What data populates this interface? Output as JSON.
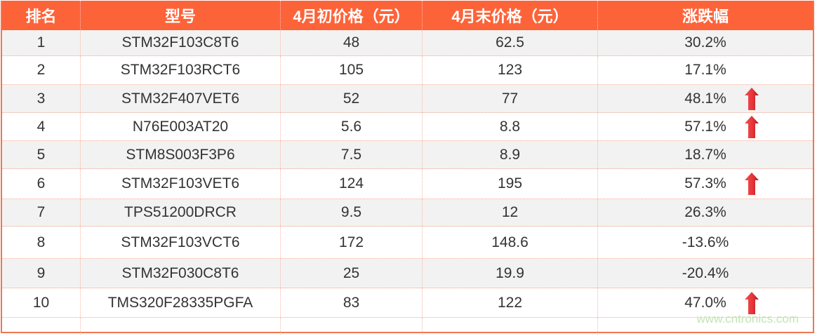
{
  "headers": [
    "排名",
    "型号",
    "4月初价格（元）",
    "4月末价格（元）",
    "涨跌幅"
  ],
  "rows": [
    {
      "rank": "1",
      "model": "STM32F103C8T6",
      "start": "48",
      "end": "62.5",
      "change": "30.2%",
      "up_arrow": false
    },
    {
      "rank": "2",
      "model": "STM32F103RCT6",
      "start": "105",
      "end": "123",
      "change": "17.1%",
      "up_arrow": false
    },
    {
      "rank": "3",
      "model": "STM32F407VET6",
      "start": "52",
      "end": "77",
      "change": "48.1%",
      "up_arrow": true
    },
    {
      "rank": "4",
      "model": "N76E003AT20",
      "start": "5.6",
      "end": "8.8",
      "change": "57.1%",
      "up_arrow": true
    },
    {
      "rank": "5",
      "model": "STM8S003F3P6",
      "start": "7.5",
      "end": "8.9",
      "change": "18.7%",
      "up_arrow": false
    },
    {
      "rank": "6",
      "model": "STM32F103VET6",
      "start": "124",
      "end": "195",
      "change": "57.3%",
      "up_arrow": true
    },
    {
      "rank": "7",
      "model": "TPS51200DRCR",
      "start": "9.5",
      "end": "12",
      "change": "26.3%",
      "up_arrow": false
    },
    {
      "rank": "8",
      "model": "STM32F103VCT6",
      "start": "172",
      "end": "148.6",
      "change": "-13.6%",
      "up_arrow": false
    },
    {
      "rank": "9",
      "model": "STM32F030C8T6",
      "start": "25",
      "end": "19.9",
      "change": "-20.4%",
      "up_arrow": false
    },
    {
      "rank": "10",
      "model": "TMS320F28335PGFA",
      "start": "83",
      "end": "122",
      "change": "47.0%",
      "up_arrow": true
    }
  ],
  "watermark": "www.cntronics.com",
  "colors": {
    "header_bg": "#fd6339",
    "arrow": "#e8383c",
    "stripe": "#f2f2f2"
  }
}
